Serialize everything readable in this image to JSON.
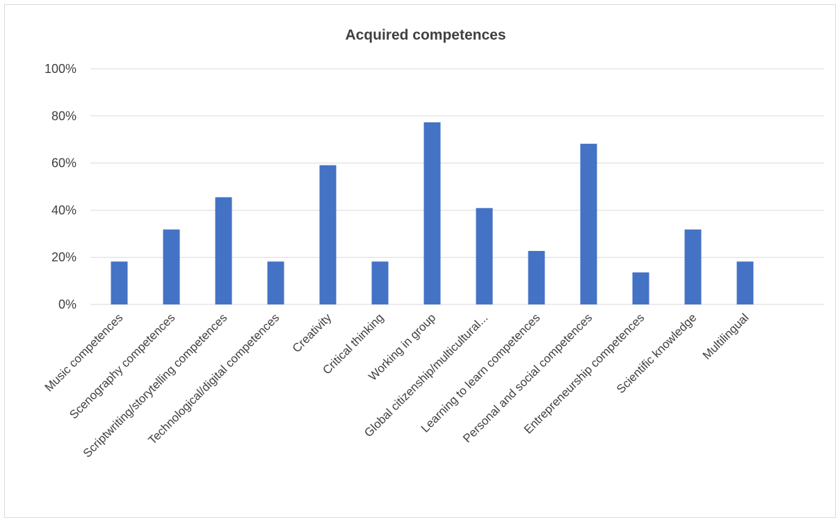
{
  "chart_data": {
    "type": "bar",
    "title": "Acquired competences",
    "xlabel": "",
    "ylabel": "",
    "ylim": [
      0,
      100
    ],
    "yticks": [
      "0%",
      "20%",
      "40%",
      "60%",
      "80%",
      "100%"
    ],
    "grid": true,
    "legend": "none",
    "bar_color": "#4472c4",
    "categories": [
      "Music competences",
      "Scenography competences",
      "Scriptwriting/storytelling competences",
      "Technological/digital competences",
      "Creativity",
      "Critical thinking",
      "Working in group",
      "Global citizenship/multicultural...",
      "Learning to learn competences",
      "Personal and social competences",
      "Entrepreneurship competences",
      "Scientific knowledge",
      "Multilingual"
    ],
    "values": [
      18.2,
      31.8,
      45.5,
      18.2,
      59.1,
      18.2,
      77.3,
      40.9,
      22.7,
      68.2,
      13.6,
      31.8,
      18.2
    ]
  }
}
